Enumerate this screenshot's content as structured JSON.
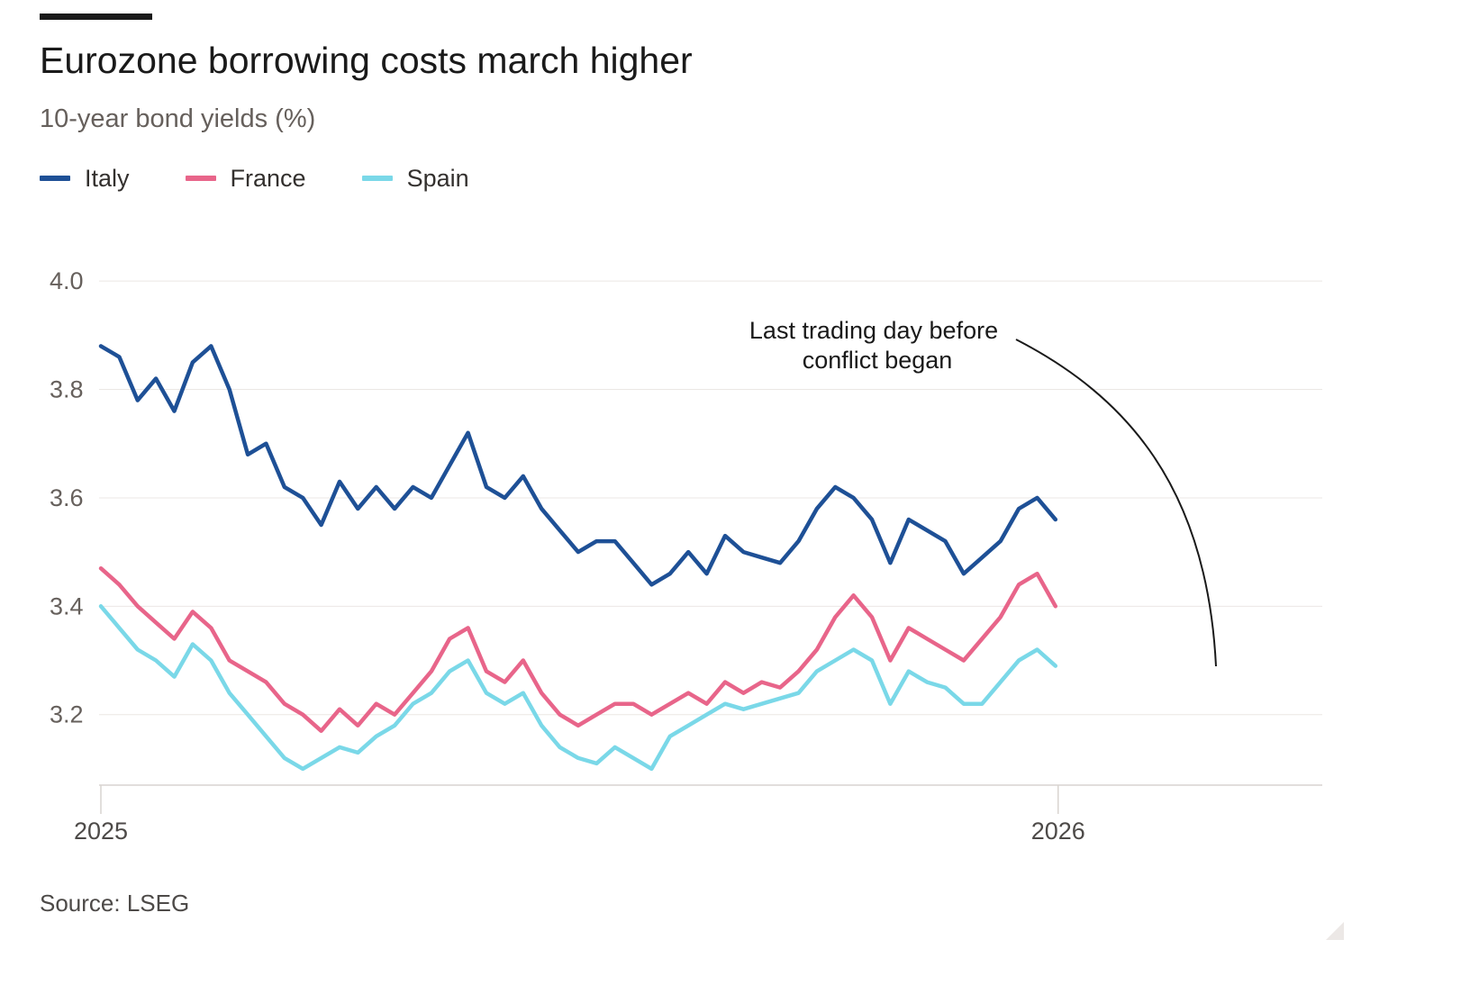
{
  "header": {
    "title": "Eurozone borrowing costs march higher",
    "subtitle": "10-year bond yields (%)"
  },
  "legend": [
    {
      "label": "Italy",
      "color": "#1e5096"
    },
    {
      "label": "France",
      "color": "#e8658a"
    },
    {
      "label": "Spain",
      "color": "#7ad8e8"
    }
  ],
  "annotation": {
    "line1": "Last trading day before",
    "line2": "conflict began"
  },
  "footer": {
    "source": "Source: LSEG"
  },
  "chart_data": {
    "type": "line",
    "x_axis": {
      "start": "2025-01-01",
      "end": "2026-04-10",
      "tick_labels": [
        "2025",
        "2026"
      ],
      "tick_dates": [
        "2025-01-01",
        "2026-01-01"
      ]
    },
    "y_axis": {
      "ylim": [
        3.07,
        4.07
      ],
      "ticks": [
        3.2,
        3.4,
        3.6,
        3.8,
        4.0
      ],
      "tick_labels": [
        "3.2",
        "3.4",
        "3.6",
        "3.8",
        "4.0"
      ]
    },
    "grid": "horizontal",
    "legend_position": "top-left",
    "annotation_date": "2026-02-27",
    "series": [
      {
        "name": "Italy",
        "color": "#1e5096",
        "points": [
          [
            "2025-01-01",
            3.88
          ],
          [
            "2025-01-08",
            3.86
          ],
          [
            "2025-01-15",
            3.78
          ],
          [
            "2025-01-22",
            3.82
          ],
          [
            "2025-01-29",
            3.76
          ],
          [
            "2025-02-05",
            3.85
          ],
          [
            "2025-02-12",
            3.88
          ],
          [
            "2025-02-19",
            3.8
          ],
          [
            "2025-02-26",
            3.68
          ],
          [
            "2025-03-05",
            3.7
          ],
          [
            "2025-03-12",
            3.62
          ],
          [
            "2025-03-19",
            3.6
          ],
          [
            "2025-03-26",
            3.55
          ],
          [
            "2025-04-02",
            3.63
          ],
          [
            "2025-04-09",
            3.58
          ],
          [
            "2025-04-16",
            3.62
          ],
          [
            "2025-04-23",
            3.58
          ],
          [
            "2025-04-30",
            3.62
          ],
          [
            "2025-05-07",
            3.6
          ],
          [
            "2025-05-14",
            3.66
          ],
          [
            "2025-05-21",
            3.72
          ],
          [
            "2025-05-28",
            3.62
          ],
          [
            "2025-06-04",
            3.6
          ],
          [
            "2025-06-11",
            3.64
          ],
          [
            "2025-06-18",
            3.58
          ],
          [
            "2025-06-25",
            3.54
          ],
          [
            "2025-07-02",
            3.5
          ],
          [
            "2025-07-09",
            3.52
          ],
          [
            "2025-07-16",
            3.52
          ],
          [
            "2025-07-23",
            3.48
          ],
          [
            "2025-07-30",
            3.44
          ],
          [
            "2025-08-06",
            3.46
          ],
          [
            "2025-08-13",
            3.5
          ],
          [
            "2025-08-20",
            3.46
          ],
          [
            "2025-08-27",
            3.53
          ],
          [
            "2025-09-03",
            3.5
          ],
          [
            "2025-09-10",
            3.49
          ],
          [
            "2025-09-17",
            3.48
          ],
          [
            "2025-09-24",
            3.52
          ],
          [
            "2025-10-01",
            3.58
          ],
          [
            "2025-10-08",
            3.62
          ],
          [
            "2025-10-15",
            3.6
          ],
          [
            "2025-10-22",
            3.56
          ],
          [
            "2025-10-29",
            3.48
          ],
          [
            "2025-11-05",
            3.56
          ],
          [
            "2025-11-12",
            3.54
          ],
          [
            "2025-11-19",
            3.52
          ],
          [
            "2025-11-26",
            3.46
          ],
          [
            "2025-12-03",
            3.49
          ],
          [
            "2025-12-10",
            3.52
          ],
          [
            "2025-12-17",
            3.58
          ],
          [
            "2025-12-24",
            3.6
          ],
          [
            "2025-12-31",
            3.56
          ]
        ]
      },
      {
        "name": "France",
        "color": "#e8658a",
        "points": [
          [
            "2025-01-01",
            3.47
          ],
          [
            "2025-01-08",
            3.44
          ],
          [
            "2025-01-15",
            3.4
          ],
          [
            "2025-01-22",
            3.37
          ],
          [
            "2025-01-29",
            3.34
          ],
          [
            "2025-02-05",
            3.39
          ],
          [
            "2025-02-12",
            3.36
          ],
          [
            "2025-02-19",
            3.3
          ],
          [
            "2025-02-26",
            3.28
          ],
          [
            "2025-03-05",
            3.26
          ],
          [
            "2025-03-12",
            3.22
          ],
          [
            "2025-03-19",
            3.2
          ],
          [
            "2025-03-26",
            3.17
          ],
          [
            "2025-04-02",
            3.21
          ],
          [
            "2025-04-09",
            3.18
          ],
          [
            "2025-04-16",
            3.22
          ],
          [
            "2025-04-23",
            3.2
          ],
          [
            "2025-04-30",
            3.24
          ],
          [
            "2025-05-07",
            3.28
          ],
          [
            "2025-05-14",
            3.34
          ],
          [
            "2025-05-21",
            3.36
          ],
          [
            "2025-05-28",
            3.28
          ],
          [
            "2025-06-04",
            3.26
          ],
          [
            "2025-06-11",
            3.3
          ],
          [
            "2025-06-18",
            3.24
          ],
          [
            "2025-06-25",
            3.2
          ],
          [
            "2025-07-02",
            3.18
          ],
          [
            "2025-07-09",
            3.2
          ],
          [
            "2025-07-16",
            3.22
          ],
          [
            "2025-07-23",
            3.22
          ],
          [
            "2025-07-30",
            3.2
          ],
          [
            "2025-08-06",
            3.22
          ],
          [
            "2025-08-13",
            3.24
          ],
          [
            "2025-08-20",
            3.22
          ],
          [
            "2025-08-27",
            3.26
          ],
          [
            "2025-09-03",
            3.24
          ],
          [
            "2025-09-10",
            3.26
          ],
          [
            "2025-09-17",
            3.25
          ],
          [
            "2025-09-24",
            3.28
          ],
          [
            "2025-10-01",
            3.32
          ],
          [
            "2025-10-08",
            3.38
          ],
          [
            "2025-10-15",
            3.42
          ],
          [
            "2025-10-22",
            3.38
          ],
          [
            "2025-10-29",
            3.3
          ],
          [
            "2025-11-05",
            3.36
          ],
          [
            "2025-11-12",
            3.34
          ],
          [
            "2025-11-19",
            3.32
          ],
          [
            "2025-11-26",
            3.3
          ],
          [
            "2025-12-03",
            3.34
          ],
          [
            "2025-12-10",
            3.38
          ],
          [
            "2025-12-17",
            3.44
          ],
          [
            "2025-12-24",
            3.46
          ],
          [
            "2025-12-31",
            3.4
          ]
        ]
      },
      {
        "name": "Spain",
        "color": "#7ad8e8",
        "points": [
          [
            "2025-01-01",
            3.4
          ],
          [
            "2025-01-08",
            3.36
          ],
          [
            "2025-01-15",
            3.32
          ],
          [
            "2025-01-22",
            3.3
          ],
          [
            "2025-01-29",
            3.27
          ],
          [
            "2025-02-05",
            3.33
          ],
          [
            "2025-02-12",
            3.3
          ],
          [
            "2025-02-19",
            3.24
          ],
          [
            "2025-02-26",
            3.2
          ],
          [
            "2025-03-05",
            3.16
          ],
          [
            "2025-03-12",
            3.12
          ],
          [
            "2025-03-19",
            3.1
          ],
          [
            "2025-03-26",
            3.12
          ],
          [
            "2025-04-02",
            3.14
          ],
          [
            "2025-04-09",
            3.13
          ],
          [
            "2025-04-16",
            3.16
          ],
          [
            "2025-04-23",
            3.18
          ],
          [
            "2025-04-30",
            3.22
          ],
          [
            "2025-05-07",
            3.24
          ],
          [
            "2025-05-14",
            3.28
          ],
          [
            "2025-05-21",
            3.3
          ],
          [
            "2025-05-28",
            3.24
          ],
          [
            "2025-06-04",
            3.22
          ],
          [
            "2025-06-11",
            3.24
          ],
          [
            "2025-06-18",
            3.18
          ],
          [
            "2025-06-25",
            3.14
          ],
          [
            "2025-07-02",
            3.12
          ],
          [
            "2025-07-09",
            3.11
          ],
          [
            "2025-07-16",
            3.14
          ],
          [
            "2025-07-23",
            3.12
          ],
          [
            "2025-07-30",
            3.1
          ],
          [
            "2025-08-06",
            3.16
          ],
          [
            "2025-08-13",
            3.18
          ],
          [
            "2025-08-20",
            3.2
          ],
          [
            "2025-08-27",
            3.22
          ],
          [
            "2025-09-03",
            3.21
          ],
          [
            "2025-09-10",
            3.22
          ],
          [
            "2025-09-17",
            3.23
          ],
          [
            "2025-09-24",
            3.24
          ],
          [
            "2025-10-01",
            3.28
          ],
          [
            "2025-10-08",
            3.3
          ],
          [
            "2025-10-15",
            3.32
          ],
          [
            "2025-10-22",
            3.3
          ],
          [
            "2025-10-29",
            3.22
          ],
          [
            "2025-11-05",
            3.28
          ],
          [
            "2025-11-12",
            3.26
          ],
          [
            "2025-11-19",
            3.25
          ],
          [
            "2025-11-26",
            3.22
          ],
          [
            "2025-12-03",
            3.22
          ],
          [
            "2025-12-10",
            3.26
          ],
          [
            "2025-12-17",
            3.3
          ],
          [
            "2025-12-24",
            3.32
          ],
          [
            "2025-12-31",
            3.29
          ]
        ]
      }
    ]
  }
}
